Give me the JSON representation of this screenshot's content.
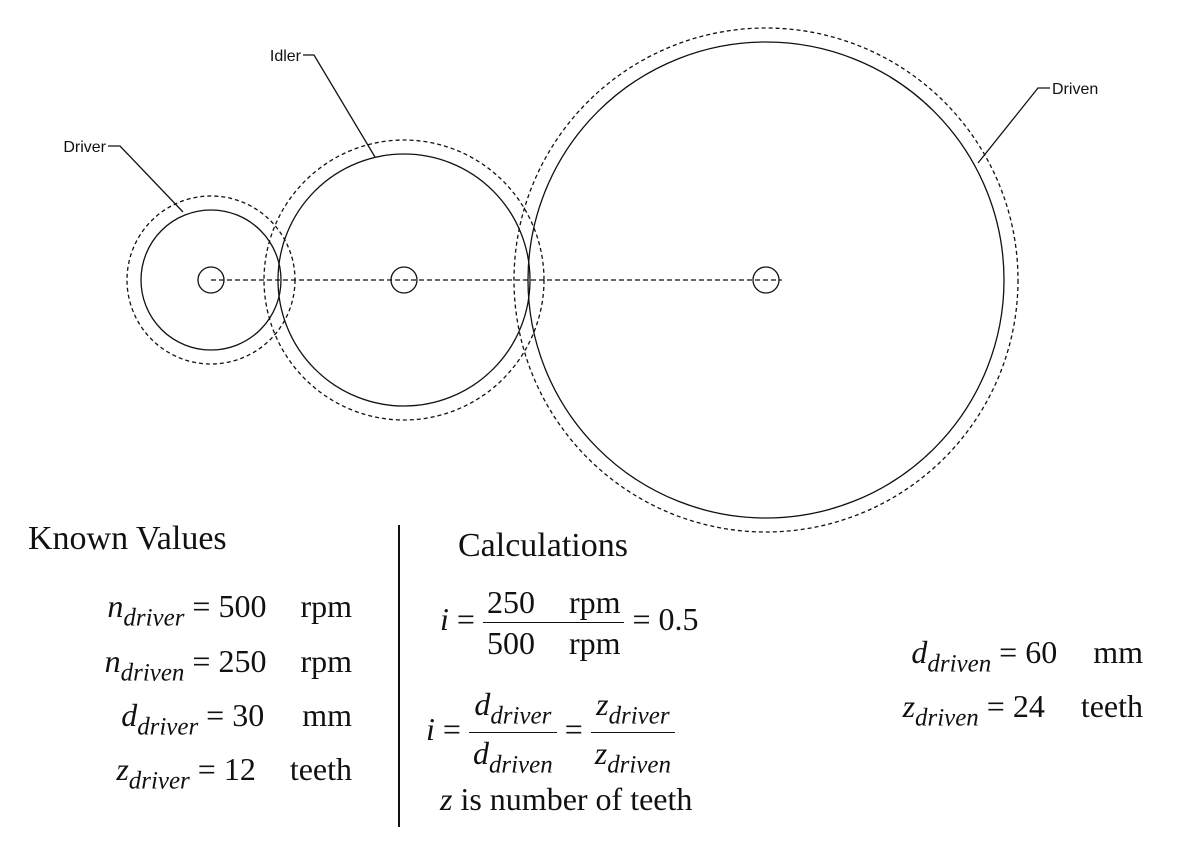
{
  "gear_labels": {
    "driver": "Driver",
    "idler": "Idler",
    "driven": "Driven"
  },
  "known": {
    "heading": "Known Values",
    "rows": [
      {
        "var": "n",
        "sub": "driver",
        "value": "500",
        "unit": "rpm"
      },
      {
        "var": "n",
        "sub": "driven",
        "value": "250",
        "unit": "rpm"
      },
      {
        "var": "d",
        "sub": "driver",
        "value": "30",
        "unit": "mm"
      },
      {
        "var": "z",
        "sub": "driver",
        "value": "12",
        "unit": "teeth"
      }
    ]
  },
  "calc": {
    "heading": "Calculations",
    "ratio_lhs": "i",
    "ratio_num_value": "250",
    "ratio_num_unit": "rpm",
    "ratio_den_value": "500",
    "ratio_den_unit": "rpm",
    "ratio_result": "0.5",
    "d_num_sub": "driver",
    "d_den_sub": "driven",
    "z_num_sub": "driver",
    "z_den_sub": "driven",
    "note_var": "z",
    "note_text": "is number of teeth"
  },
  "results": [
    {
      "var": "d",
      "sub": "driven",
      "value": "60",
      "unit": "mm"
    },
    {
      "var": "z",
      "sub": "driven",
      "value": "24",
      "unit": "teeth"
    }
  ]
}
